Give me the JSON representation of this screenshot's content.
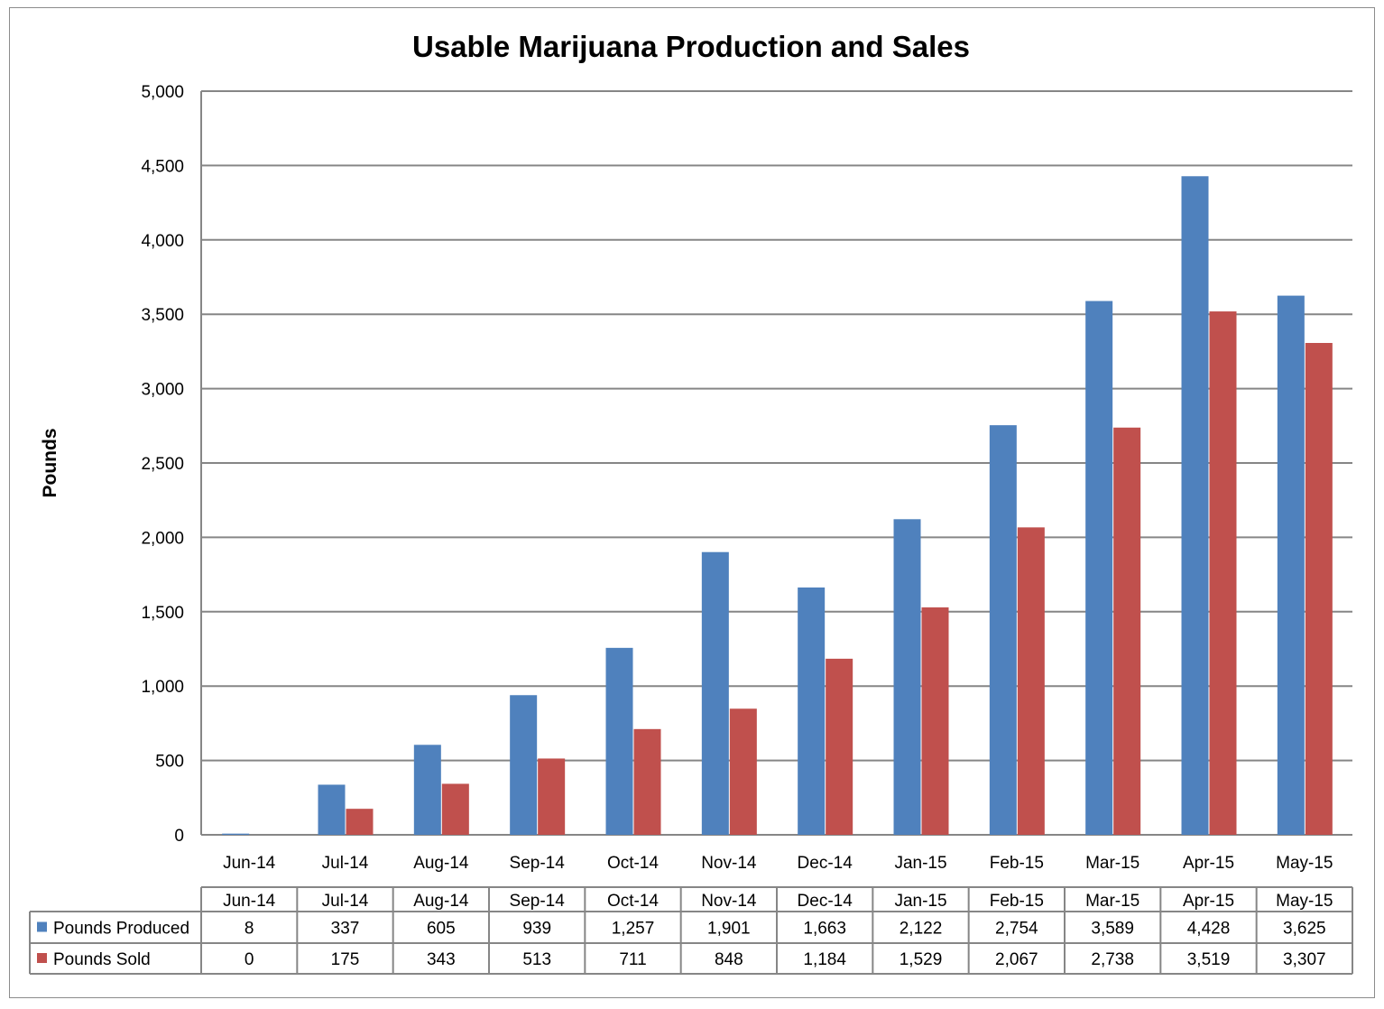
{
  "chart_data": {
    "type": "bar",
    "title": "Usable Marijuana Production and Sales",
    "xlabel": "",
    "ylabel": "Pounds",
    "ylim": [
      0,
      5000
    ],
    "yticks": [
      0,
      500,
      1000,
      1500,
      2000,
      2500,
      3000,
      3500,
      4000,
      4500,
      5000
    ],
    "ytick_labels": [
      "0",
      "500",
      "1,000",
      "1,500",
      "2,000",
      "2,500",
      "3,000",
      "3,500",
      "4,000",
      "4,500",
      "5,000"
    ],
    "grid": true,
    "legend": "data-table-bottom",
    "categories": [
      "Jun-14",
      "Jul-14",
      "Aug-14",
      "Sep-14",
      "Oct-14",
      "Nov-14",
      "Dec-14",
      "Jan-15",
      "Feb-15",
      "Mar-15",
      "Apr-15",
      "May-15"
    ],
    "series": [
      {
        "name": "Pounds Produced",
        "color": "#4F81BD",
        "values": [
          8,
          337,
          605,
          939,
          1257,
          1901,
          1663,
          2122,
          2754,
          3589,
          4428,
          3625
        ],
        "labels": [
          "8",
          "337",
          "605",
          "939",
          "1,257",
          "1,901",
          "1,663",
          "2,122",
          "2,754",
          "3,589",
          "4,428",
          "3,625"
        ]
      },
      {
        "name": "Pounds Sold",
        "color": "#C0504D",
        "values": [
          0,
          175,
          343,
          513,
          711,
          848,
          1184,
          1529,
          2067,
          2738,
          3519,
          3307
        ],
        "labels": [
          "0",
          "175",
          "343",
          "513",
          "711",
          "848",
          "1,184",
          "1,529",
          "2,067",
          "2,738",
          "3,519",
          "3,307"
        ]
      }
    ]
  }
}
